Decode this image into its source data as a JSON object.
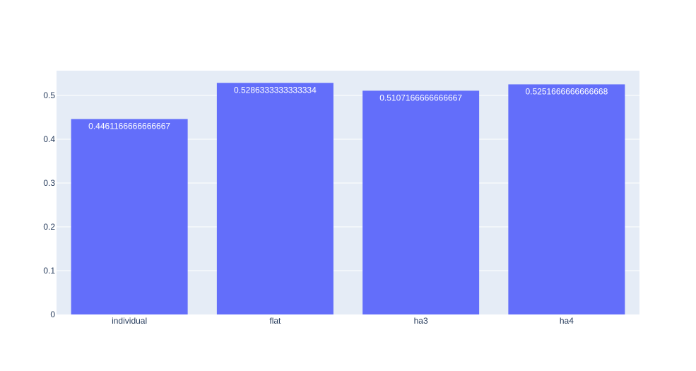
{
  "chart_data": {
    "type": "bar",
    "categories": [
      "individual",
      "flat",
      "ha3",
      "ha4"
    ],
    "values": [
      0.4461166666666667,
      0.5286333333333334,
      0.5107166666666667,
      0.5251666666666668
    ],
    "value_labels": [
      "0.4461166666666667",
      "0.5286333333333334",
      "0.5107166666666667",
      "0.5251666666666668"
    ],
    "yticks": [
      0,
      0.1,
      0.2,
      0.3,
      0.4,
      0.5
    ],
    "ytick_labels": [
      "0",
      "0.1",
      "0.2",
      "0.3",
      "0.4",
      "0.5"
    ],
    "ylim": [
      0,
      0.556456140350877
    ],
    "grid": true,
    "title": "",
    "xlabel": "",
    "ylabel": ""
  },
  "colors": {
    "bar": "#636efa",
    "plot_background": "#e5ecf6",
    "gridline": "#ffffff",
    "tick_text": "#2a3f5f",
    "bar_label_text": "#ffffff"
  }
}
